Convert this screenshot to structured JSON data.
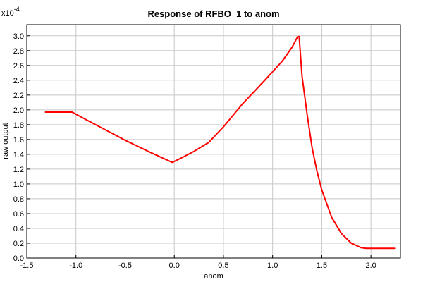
{
  "chart_data": {
    "type": "line",
    "title": "Response of RFBO_1 to anom",
    "xlabel": "anom",
    "ylabel": "raw output",
    "y_multiplier_base": "x10",
    "y_multiplier_exp": "-4",
    "xlim": [
      -1.5,
      2.3
    ],
    "ylim": [
      0.0,
      3.15
    ],
    "grid": true,
    "x_ticks": [
      -1.5,
      -1.0,
      -0.5,
      0.0,
      0.5,
      1.0,
      1.5,
      2.0
    ],
    "x_tick_labels": [
      "-1.5",
      "-1.0",
      "-0.5",
      "0.0",
      "0.5",
      "1.0",
      "1.5",
      "2.0"
    ],
    "y_ticks": [
      0.0,
      0.2,
      0.4,
      0.6,
      0.8,
      1.0,
      1.2,
      1.4,
      1.6,
      1.8,
      2.0,
      2.2,
      2.4,
      2.6,
      2.8,
      3.0
    ],
    "y_tick_labels": [
      "0.0",
      "0.2",
      "0.4",
      "0.6",
      "0.8",
      "1.0",
      "1.2",
      "1.4",
      "1.6",
      "1.8",
      "2.0",
      "2.2",
      "2.4",
      "2.6",
      "2.8",
      "3.0"
    ],
    "series": [
      {
        "color": "#ff0000",
        "x": [
          -1.31,
          -1.04,
          -0.8,
          -0.5,
          -0.25,
          -0.02,
          0.1,
          0.2,
          0.35,
          0.5,
          0.7,
          0.9,
          1.1,
          1.2,
          1.255,
          1.27,
          1.3,
          1.35,
          1.4,
          1.45,
          1.5,
          1.6,
          1.7,
          1.8,
          1.9,
          1.95,
          2.1,
          2.24
        ],
        "y": [
          1.97,
          1.97,
          1.8,
          1.59,
          1.43,
          1.29,
          1.37,
          1.44,
          1.56,
          1.77,
          2.09,
          2.37,
          2.66,
          2.85,
          2.99,
          2.99,
          2.45,
          1.95,
          1.5,
          1.18,
          0.92,
          0.55,
          0.33,
          0.2,
          0.14,
          0.13,
          0.13,
          0.13
        ]
      }
    ]
  }
}
